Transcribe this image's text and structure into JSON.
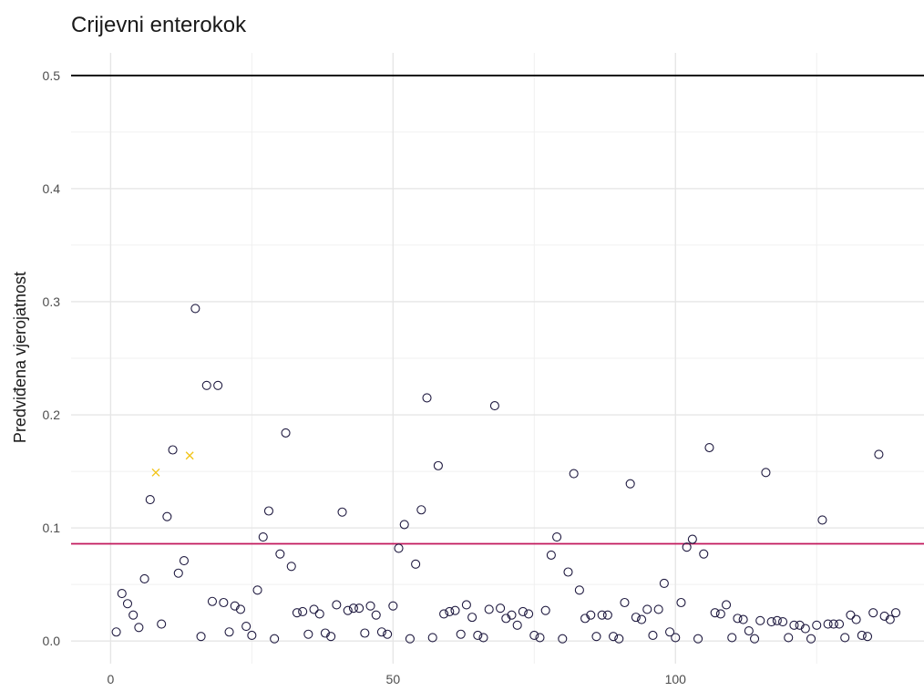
{
  "chart_data": {
    "type": "scatter",
    "title": "Crijevni enterokok",
    "xlabel": "",
    "ylabel": "Predviđena vjerojatnost",
    "xlim": [
      -7,
      144
    ],
    "ylim": [
      -0.02,
      0.52
    ],
    "x_ticks": [
      0,
      50,
      100
    ],
    "y_ticks": [
      0.0,
      0.1,
      0.2,
      0.3,
      0.4,
      0.5
    ],
    "y_tick_labels": [
      "0.0",
      "0.1",
      "0.2",
      "0.3",
      "0.4",
      "0.5"
    ],
    "x_tick_labels": [
      "0",
      "50",
      "100"
    ],
    "grid": true,
    "reference_lines": [
      {
        "y": 0.5,
        "color": "#000000"
      },
      {
        "y": 0.086,
        "color": "#c2185b"
      }
    ],
    "series": [
      {
        "marker": "circle",
        "color": "#1f1a40",
        "points": [
          [
            1,
            0.008
          ],
          [
            2,
            0.042
          ],
          [
            3,
            0.033
          ],
          [
            4,
            0.023
          ],
          [
            5,
            0.012
          ],
          [
            6,
            0.055
          ],
          [
            7,
            0.125
          ],
          [
            9,
            0.015
          ],
          [
            10,
            0.11
          ],
          [
            11,
            0.169
          ],
          [
            12,
            0.06
          ],
          [
            13,
            0.071
          ],
          [
            15,
            0.294
          ],
          [
            16,
            0.004
          ],
          [
            17,
            0.226
          ],
          [
            18,
            0.035
          ],
          [
            19,
            0.226
          ],
          [
            20,
            0.034
          ],
          [
            21,
            0.008
          ],
          [
            22,
            0.031
          ],
          [
            23,
            0.028
          ],
          [
            24,
            0.013
          ],
          [
            25,
            0.005
          ],
          [
            26,
            0.045
          ],
          [
            27,
            0.092
          ],
          [
            28,
            0.115
          ],
          [
            29,
            0.002
          ],
          [
            30,
            0.077
          ],
          [
            31,
            0.184
          ],
          [
            32,
            0.066
          ],
          [
            33,
            0.025
          ],
          [
            34,
            0.026
          ],
          [
            35,
            0.006
          ],
          [
            36,
            0.028
          ],
          [
            37,
            0.024
          ],
          [
            38,
            0.007
          ],
          [
            39,
            0.004
          ],
          [
            40,
            0.032
          ],
          [
            41,
            0.114
          ],
          [
            42,
            0.027
          ],
          [
            43,
            0.029
          ],
          [
            44,
            0.029
          ],
          [
            45,
            0.007
          ],
          [
            46,
            0.031
          ],
          [
            47,
            0.023
          ],
          [
            48,
            0.008
          ],
          [
            49,
            0.006
          ],
          [
            50,
            0.031
          ],
          [
            51,
            0.082
          ],
          [
            52,
            0.103
          ],
          [
            53,
            0.002
          ],
          [
            54,
            0.068
          ],
          [
            55,
            0.116
          ],
          [
            56,
            0.215
          ],
          [
            57,
            0.003
          ],
          [
            58,
            0.155
          ],
          [
            59,
            0.024
          ],
          [
            60,
            0.026
          ],
          [
            61,
            0.027
          ],
          [
            62,
            0.006
          ],
          [
            63,
            0.032
          ],
          [
            64,
            0.021
          ],
          [
            65,
            0.005
          ],
          [
            66,
            0.003
          ],
          [
            67,
            0.028
          ],
          [
            68,
            0.208
          ],
          [
            69,
            0.029
          ],
          [
            70,
            0.02
          ],
          [
            71,
            0.023
          ],
          [
            72,
            0.014
          ],
          [
            73,
            0.026
          ],
          [
            74,
            0.024
          ],
          [
            75,
            0.005
          ],
          [
            76,
            0.003
          ],
          [
            77,
            0.027
          ],
          [
            78,
            0.076
          ],
          [
            79,
            0.092
          ],
          [
            80,
            0.002
          ],
          [
            81,
            0.061
          ],
          [
            82,
            0.148
          ],
          [
            83,
            0.045
          ],
          [
            84,
            0.02
          ],
          [
            85,
            0.023
          ],
          [
            86,
            0.004
          ],
          [
            87,
            0.023
          ],
          [
            88,
            0.023
          ],
          [
            89,
            0.004
          ],
          [
            90,
            0.002
          ],
          [
            91,
            0.034
          ],
          [
            92,
            0.139
          ],
          [
            93,
            0.021
          ],
          [
            94,
            0.019
          ],
          [
            95,
            0.028
          ],
          [
            96,
            0.005
          ],
          [
            97,
            0.028
          ],
          [
            98,
            0.051
          ],
          [
            99,
            0.008
          ],
          [
            100,
            0.003
          ],
          [
            101,
            0.034
          ],
          [
            102,
            0.083
          ],
          [
            103,
            0.09
          ],
          [
            104,
            0.002
          ],
          [
            105,
            0.077
          ],
          [
            106,
            0.171
          ],
          [
            107,
            0.025
          ],
          [
            108,
            0.024
          ],
          [
            109,
            0.032
          ],
          [
            110,
            0.003
          ],
          [
            111,
            0.02
          ],
          [
            112,
            0.019
          ],
          [
            113,
            0.009
          ],
          [
            114,
            0.002
          ],
          [
            115,
            0.018
          ],
          [
            116,
            0.149
          ],
          [
            117,
            0.017
          ],
          [
            118,
            0.018
          ],
          [
            119,
            0.017
          ],
          [
            120,
            0.003
          ],
          [
            121,
            0.014
          ],
          [
            122,
            0.014
          ],
          [
            123,
            0.011
          ],
          [
            124,
            0.002
          ],
          [
            125,
            0.014
          ],
          [
            126,
            0.107
          ],
          [
            127,
            0.015
          ],
          [
            128,
            0.015
          ],
          [
            129,
            0.015
          ],
          [
            130,
            0.003
          ],
          [
            131,
            0.023
          ],
          [
            132,
            0.019
          ],
          [
            133,
            0.005
          ],
          [
            134,
            0.004
          ],
          [
            135,
            0.025
          ],
          [
            136,
            0.165
          ],
          [
            137,
            0.022
          ],
          [
            138,
            0.019
          ],
          [
            139,
            0.025
          ]
        ]
      },
      {
        "marker": "cross",
        "color": "#f2c418",
        "points": [
          [
            8,
            0.149
          ],
          [
            14,
            0.164
          ]
        ]
      }
    ]
  }
}
